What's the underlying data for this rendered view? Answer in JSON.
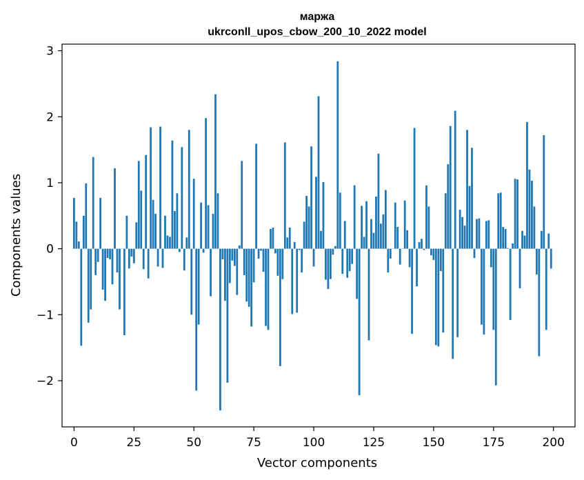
{
  "chart_data": {
    "type": "bar",
    "title_line1": "маржа",
    "title_line2": "ukrconll_upos_cbow_200_10_2022 model",
    "xlabel": "Vector components",
    "ylabel": "Components values",
    "xlim": [
      -5,
      209
    ],
    "ylim": [
      -2.7,
      3.1
    ],
    "xticks": [
      0,
      25,
      50,
      75,
      100,
      125,
      150,
      175,
      200
    ],
    "xtick_labels": [
      "0",
      "25",
      "50",
      "75",
      "100",
      "125",
      "150",
      "175",
      "200"
    ],
    "yticks": [
      -2,
      -1,
      0,
      1,
      2,
      3
    ],
    "ytick_labels": [
      "−2",
      "−1",
      "0",
      "1",
      "2",
      "3"
    ],
    "bar_color": "#1f77b4",
    "grid": false,
    "x": [
      0,
      1,
      2,
      3,
      4,
      5,
      6,
      7,
      8,
      9,
      10,
      11,
      12,
      13,
      14,
      15,
      16,
      17,
      18,
      19,
      20,
      21,
      22,
      23,
      24,
      25,
      26,
      27,
      28,
      29,
      30,
      31,
      32,
      33,
      34,
      35,
      36,
      37,
      38,
      39,
      40,
      41,
      42,
      43,
      44,
      45,
      46,
      47,
      48,
      49,
      50,
      51,
      52,
      53,
      54,
      55,
      56,
      57,
      58,
      59,
      60,
      61,
      62,
      63,
      64,
      65,
      66,
      67,
      68,
      69,
      70,
      71,
      72,
      73,
      74,
      75,
      76,
      77,
      78,
      79,
      80,
      81,
      82,
      83,
      84,
      85,
      86,
      87,
      88,
      89,
      90,
      91,
      92,
      93,
      94,
      95,
      96,
      97,
      98,
      99,
      100,
      101,
      102,
      103,
      104,
      105,
      106,
      107,
      108,
      109,
      110,
      111,
      112,
      113,
      114,
      115,
      116,
      117,
      118,
      119,
      120,
      121,
      122,
      123,
      124,
      125,
      126,
      127,
      128,
      129,
      130,
      131,
      132,
      133,
      134,
      135,
      136,
      137,
      138,
      139,
      140,
      141,
      142,
      143,
      144,
      145,
      146,
      147,
      148,
      149,
      150,
      151,
      152,
      153,
      154,
      155,
      156,
      157,
      158,
      159,
      160,
      161,
      162,
      163,
      164,
      165,
      166,
      167,
      168,
      169,
      170,
      171,
      172,
      173,
      174,
      175,
      176,
      177,
      178,
      179,
      180,
      181,
      182,
      183,
      184,
      185,
      186,
      187,
      188,
      189,
      190,
      191,
      192,
      193,
      194,
      195,
      196,
      197,
      198,
      199
    ],
    "values": [
      0.77,
      0.41,
      0.11,
      -1.47,
      0.5,
      0.99,
      -1.12,
      -0.92,
      1.39,
      -0.4,
      -0.2,
      0.77,
      -0.62,
      -0.79,
      -0.14,
      -0.16,
      -0.54,
      1.22,
      -0.36,
      -0.92,
      0.0,
      -1.31,
      0.5,
      -0.3,
      -0.12,
      -0.22,
      0.4,
      1.33,
      0.88,
      -0.31,
      1.42,
      -0.45,
      1.84,
      0.74,
      0.53,
      -0.27,
      1.85,
      -0.29,
      0.5,
      0.2,
      0.18,
      1.64,
      0.57,
      0.84,
      -0.05,
      1.54,
      -0.33,
      0.17,
      1.8,
      -1.0,
      1.06,
      -2.15,
      -1.15,
      0.7,
      -0.06,
      1.98,
      0.66,
      -0.72,
      0.53,
      2.34,
      0.84,
      -2.45,
      -0.16,
      -0.79,
      -2.03,
      -0.52,
      -0.18,
      -0.26,
      -0.7,
      0.05,
      1.33,
      -0.4,
      -0.8,
      -0.88,
      -1.18,
      -0.51,
      1.59,
      -0.15,
      -0.03,
      -0.35,
      -1.17,
      -1.23,
      0.3,
      0.32,
      -0.07,
      -0.41,
      -1.78,
      -0.46,
      1.61,
      0.17,
      0.32,
      -0.99,
      0.1,
      -0.97,
      -0.02,
      -0.36,
      0.41,
      0.8,
      0.64,
      1.55,
      -0.27,
      1.09,
      2.31,
      0.27,
      1.01,
      -0.47,
      -0.61,
      -0.46,
      -0.09,
      0.04,
      2.84,
      0.85,
      -0.38,
      0.42,
      -0.44,
      -0.34,
      -0.23,
      0.96,
      -0.76,
      -2.22,
      0.65,
      0.18,
      0.72,
      -1.39,
      0.45,
      0.24,
      0.79,
      1.44,
      0.38,
      0.52,
      0.89,
      -0.36,
      -0.15,
      0.0,
      0.7,
      0.33,
      -0.24,
      0.0,
      0.73,
      0.28,
      -0.28,
      -1.29,
      1.83,
      -0.57,
      0.1,
      0.15,
      -0.02,
      0.96,
      0.64,
      -0.1,
      -0.17,
      -1.46,
      -1.48,
      -0.34,
      -1.27,
      0.84,
      1.28,
      1.86,
      -1.67,
      2.09,
      -1.34,
      0.59,
      0.48,
      0.35,
      1.8,
      0.95,
      1.53,
      -0.14,
      0.45,
      0.46,
      -1.15,
      -1.3,
      0.42,
      0.43,
      -0.28,
      -1.23,
      -2.07,
      0.84,
      0.85,
      0.33,
      0.3,
      0.01,
      -1.08,
      0.08,
      1.06,
      1.05,
      -0.6,
      0.27,
      0.2,
      1.92,
      1.2,
      1.03,
      0.64,
      -0.39,
      -1.63,
      0.27,
      1.72,
      -1.23,
      0.23,
      -0.3
    ]
  }
}
